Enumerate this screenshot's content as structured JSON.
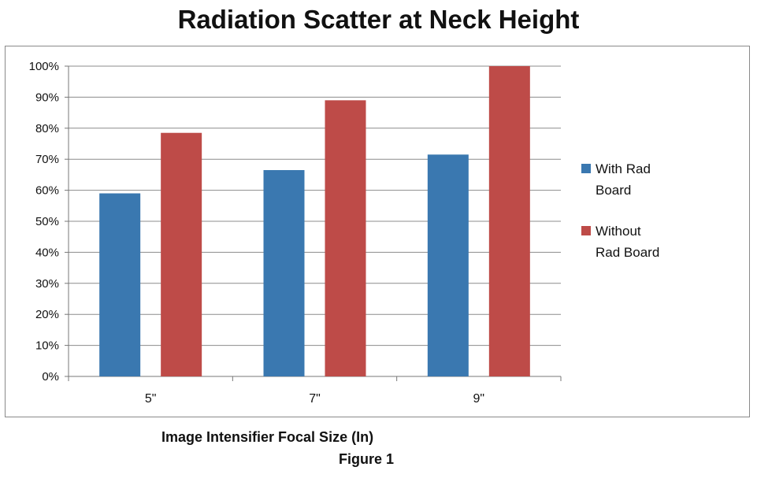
{
  "chart_data": {
    "type": "bar",
    "title": "Radiation Scatter at Neck Height",
    "xlabel": "Image Intensifier Focal Size (In)",
    "ylabel": "",
    "caption": "Figure 1",
    "categories": [
      "5\"",
      "7\"",
      "9\""
    ],
    "series": [
      {
        "name": "With Rad Board",
        "values": [
          59,
          66.5,
          71.5
        ],
        "color": "#3a78b0",
        "legend_lines": [
          "With Rad",
          "Board"
        ]
      },
      {
        "name": "Without Rad Board",
        "values": [
          78.5,
          89,
          100
        ],
        "color": "#be4b48",
        "legend_lines": [
          "Without",
          "Rad Board"
        ]
      }
    ],
    "ylim": [
      0,
      100
    ],
    "yticks": [
      "0%",
      "10%",
      "20%",
      "30%",
      "40%",
      "50%",
      "60%",
      "70%",
      "80%",
      "90%",
      "100%"
    ],
    "grid": true,
    "legend_position": "right"
  }
}
